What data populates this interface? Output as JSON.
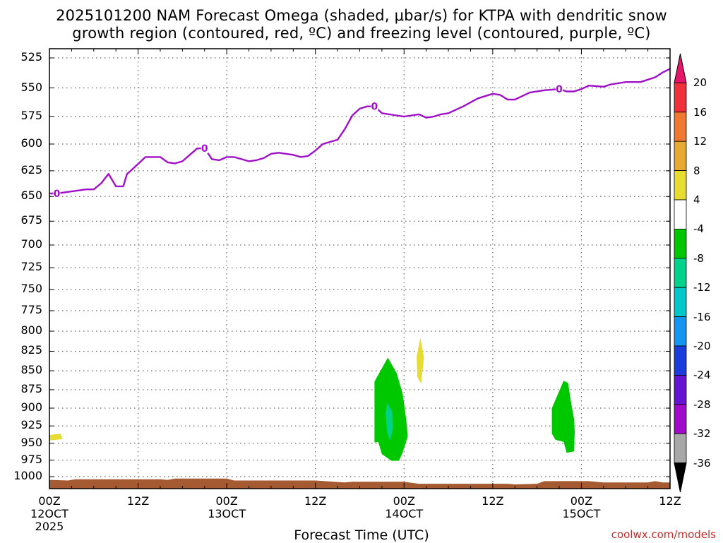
{
  "title_line1": "2025101200 NAM Forecast Omega (shaded, μbar/s) for KTPA with dendritic snow",
  "title_line2": "growth region (contoured, red, ºC) and freezing level (contoured, purple, ºC)",
  "xlabel": "Forecast Time (UTC)",
  "credit": "coolwx.com/models",
  "colors": {
    "freezing_line": "#a010c8",
    "terrain": "#a65a32",
    "grid": "#666666"
  },
  "chart_data": {
    "type": "contour",
    "ylabel": "",
    "y_axis": {
      "reversed": true,
      "unit": "hPa",
      "ticks": [
        525,
        550,
        575,
        600,
        625,
        650,
        675,
        700,
        725,
        750,
        775,
        800,
        825,
        850,
        875,
        900,
        925,
        950,
        975,
        1000
      ],
      "range": [
        515,
        1015
      ]
    },
    "x_axis": {
      "range_hours": [
        0,
        84
      ],
      "ticks": [
        {
          "hour": 0,
          "line1": "00Z",
          "line2": "12OCT",
          "line3": "2025"
        },
        {
          "hour": 12,
          "line1": "12Z",
          "line2": "",
          "line3": ""
        },
        {
          "hour": 24,
          "line1": "00Z",
          "line2": "13OCT",
          "line3": ""
        },
        {
          "hour": 36,
          "line1": "12Z",
          "line2": "",
          "line3": ""
        },
        {
          "hour": 48,
          "line1": "00Z",
          "line2": "14OCT",
          "line3": ""
        },
        {
          "hour": 60,
          "line1": "12Z",
          "line2": "",
          "line3": ""
        },
        {
          "hour": 72,
          "line1": "00Z",
          "line2": "15OCT",
          "line3": ""
        },
        {
          "hour": 84,
          "line1": "12Z",
          "line2": "",
          "line3": ""
        }
      ]
    },
    "freezing_level": {
      "label": "0",
      "label_hours": [
        1,
        21,
        44,
        69
      ],
      "points": [
        [
          0,
          647
        ],
        [
          1,
          647
        ],
        [
          3,
          645
        ],
        [
          5,
          643
        ],
        [
          6,
          643
        ],
        [
          7,
          637
        ],
        [
          8,
          628
        ],
        [
          9,
          640
        ],
        [
          10,
          640
        ],
        [
          10.5,
          628
        ],
        [
          11,
          625
        ],
        [
          13,
          612
        ],
        [
          15,
          612
        ],
        [
          16,
          617
        ],
        [
          17,
          618
        ],
        [
          18,
          616
        ],
        [
          19,
          610
        ],
        [
          20,
          604
        ],
        [
          21,
          604
        ],
        [
          22,
          614
        ],
        [
          23,
          615
        ],
        [
          24,
          612
        ],
        [
          25,
          612
        ],
        [
          26,
          614
        ],
        [
          27,
          616
        ],
        [
          28,
          615
        ],
        [
          29,
          613
        ],
        [
          30,
          609
        ],
        [
          31,
          608
        ],
        [
          33,
          610
        ],
        [
          34,
          612
        ],
        [
          35,
          611
        ],
        [
          36,
          606
        ],
        [
          37,
          600
        ],
        [
          38,
          598
        ],
        [
          39,
          596
        ],
        [
          40,
          586
        ],
        [
          41,
          574
        ],
        [
          42,
          568
        ],
        [
          43,
          566
        ],
        [
          44,
          566
        ],
        [
          45,
          572
        ],
        [
          47,
          574
        ],
        [
          48,
          575
        ],
        [
          49,
          574
        ],
        [
          50,
          573
        ],
        [
          51,
          576
        ],
        [
          52,
          575
        ],
        [
          53,
          573
        ],
        [
          54,
          572
        ],
        [
          56,
          566
        ],
        [
          58,
          559
        ],
        [
          60,
          555
        ],
        [
          61,
          556
        ],
        [
          62,
          560
        ],
        [
          63,
          560
        ],
        [
          64,
          557
        ],
        [
          65,
          554
        ],
        [
          67,
          552
        ],
        [
          69,
          551
        ],
        [
          70,
          553
        ],
        [
          71,
          553
        ],
        [
          72,
          551
        ],
        [
          73,
          548
        ],
        [
          75,
          549
        ],
        [
          76,
          547
        ],
        [
          78,
          545
        ],
        [
          80,
          545
        ],
        [
          81,
          543
        ],
        [
          82,
          541
        ],
        [
          83,
          537
        ],
        [
          84,
          534
        ]
      ]
    },
    "omega_regions": [
      {
        "level": "4 to 8",
        "color": "#e6dc32",
        "points": [
          [
            0,
            938
          ],
          [
            1.5,
            936
          ],
          [
            1.8,
            944
          ],
          [
            0,
            946
          ]
        ]
      },
      {
        "level": "4 to 8",
        "color": "#e6dc32",
        "points": [
          [
            49.7,
            832
          ],
          [
            50.2,
            808
          ],
          [
            50.7,
            833
          ],
          [
            50.3,
            867
          ],
          [
            49.8,
            858
          ]
        ]
      },
      {
        "level": "-8 to -4",
        "color": "#00c800",
        "points": [
          [
            44,
            864
          ],
          [
            45.8,
            833
          ],
          [
            47,
            853
          ],
          [
            47.8,
            880
          ],
          [
            48.3,
            916
          ],
          [
            48.5,
            940
          ],
          [
            47.8,
            964
          ],
          [
            47.3,
            976
          ],
          [
            46.3,
            976
          ],
          [
            45,
            966
          ],
          [
            44.5,
            948
          ],
          [
            44,
            949
          ]
        ]
      },
      {
        "level": "-12 to -8",
        "color": "#00d28c",
        "points": [
          [
            45.7,
            893
          ],
          [
            46.4,
            905
          ],
          [
            46.5,
            928
          ],
          [
            46.1,
            946
          ],
          [
            45.7,
            933
          ],
          [
            45.5,
            907
          ]
        ]
      },
      {
        "level": "-8 to -4",
        "color": "#00c800",
        "points": [
          [
            68,
            900
          ],
          [
            69.6,
            863
          ],
          [
            70.2,
            866
          ],
          [
            70.6,
            892
          ],
          [
            71,
            915
          ],
          [
            71.1,
            933
          ],
          [
            71,
            962
          ],
          [
            70,
            964
          ],
          [
            69.6,
            948
          ],
          [
            68.5,
            945
          ],
          [
            68,
            936
          ]
        ]
      }
    ],
    "terrain": {
      "points": [
        [
          0,
          1005
        ],
        [
          2.5,
          1006
        ],
        [
          3.5,
          1004
        ],
        [
          15,
          1004
        ],
        [
          16,
          1005
        ],
        [
          17,
          1003
        ],
        [
          24,
          1003
        ],
        [
          25,
          1006
        ],
        [
          36,
          1006
        ],
        [
          40,
          1009
        ],
        [
          41,
          1008
        ],
        [
          48,
          1008
        ],
        [
          50,
          1011
        ],
        [
          62,
          1011
        ],
        [
          63,
          1012
        ],
        [
          66,
          1011
        ],
        [
          67,
          1007
        ],
        [
          73,
          1007
        ],
        [
          75,
          1009
        ],
        [
          81,
          1009
        ],
        [
          82,
          1007
        ],
        [
          83,
          1009
        ],
        [
          84,
          1009
        ]
      ]
    },
    "colorbar": {
      "title": "",
      "labels": [
        "20",
        "16",
        "12",
        "8",
        "4",
        "-4",
        "-8",
        "-12",
        "-16",
        "-20",
        "-24",
        "-28",
        "-32",
        "-36"
      ],
      "colors": [
        "#e6166a",
        "#f0303a",
        "#f07830",
        "#e6aa32",
        "#e6dc32",
        "#ffffff",
        "#00c800",
        "#00d28c",
        "#00c8c8",
        "#1496f0",
        "#1c3cdc",
        "#6414d2",
        "#a00ac8",
        "#a8a8a8",
        "#000000"
      ]
    }
  }
}
